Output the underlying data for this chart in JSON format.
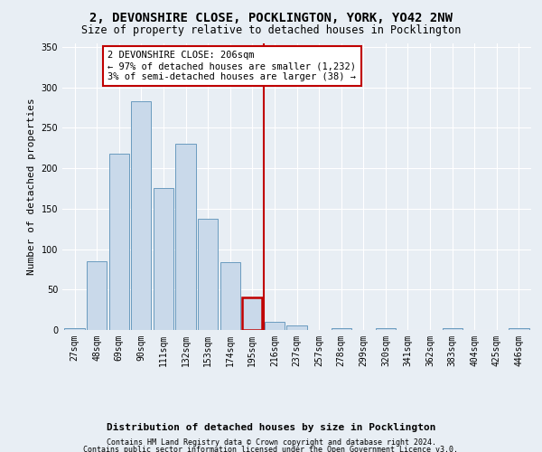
{
  "title": "2, DEVONSHIRE CLOSE, POCKLINGTON, YORK, YO42 2NW",
  "subtitle": "Size of property relative to detached houses in Pocklington",
  "xlabel": "Distribution of detached houses by size in Pocklington",
  "ylabel": "Number of detached properties",
  "categories": [
    "27sqm",
    "48sqm",
    "69sqm",
    "90sqm",
    "111sqm",
    "132sqm",
    "153sqm",
    "174sqm",
    "195sqm",
    "216sqm",
    "237sqm",
    "257sqm",
    "278sqm",
    "299sqm",
    "320sqm",
    "341sqm",
    "362sqm",
    "383sqm",
    "404sqm",
    "425sqm",
    "446sqm"
  ],
  "values": [
    2,
    85,
    218,
    283,
    175,
    230,
    138,
    84,
    40,
    10,
    6,
    0,
    2,
    0,
    2,
    0,
    0,
    2,
    0,
    0,
    2
  ],
  "bar_color": "#c9d9ea",
  "bar_edge_color": "#6a9bbf",
  "highlight_index": 8,
  "highlight_bar_edge_color": "#c00000",
  "vline_x_index": 8.5,
  "vline_color": "#c00000",
  "annotation_text": "2 DEVONSHIRE CLOSE: 206sqm\n← 97% of detached houses are smaller (1,232)\n3% of semi-detached houses are larger (38) →",
  "annotation_box_color": "#ffffff",
  "annotation_box_edge_color": "#c00000",
  "annotation_fontsize": 7.5,
  "ylim": [
    0,
    355
  ],
  "yticks": [
    0,
    50,
    100,
    150,
    200,
    250,
    300,
    350
  ],
  "title_fontsize": 10,
  "subtitle_fontsize": 8.5,
  "xlabel_fontsize": 8,
  "ylabel_fontsize": 8,
  "tick_fontsize": 7,
  "footer1": "Contains HM Land Registry data © Crown copyright and database right 2024.",
  "footer2": "Contains public sector information licensed under the Open Government Licence v3.0.",
  "footer_fontsize": 6,
  "background_color": "#e8eef4",
  "plot_background_color": "#e8eef4",
  "grid_color": "#ffffff"
}
